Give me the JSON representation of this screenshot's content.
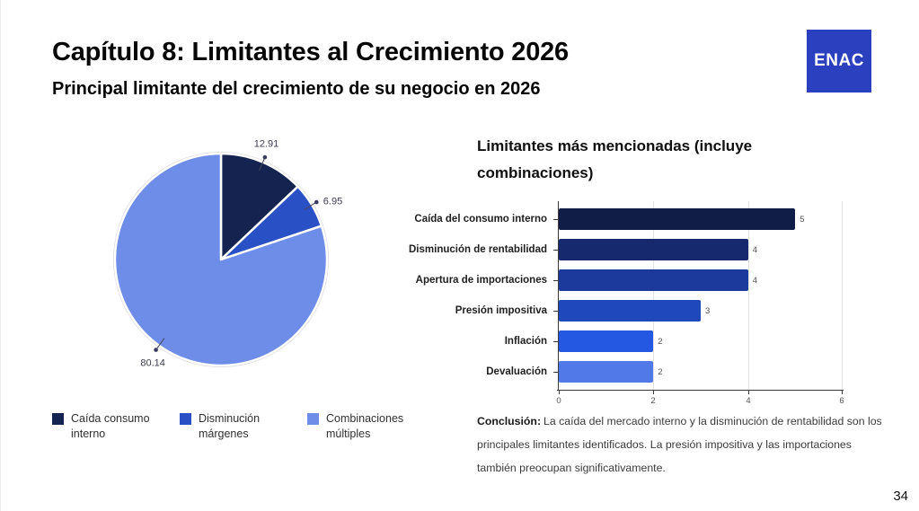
{
  "header": {
    "title": "Capítulo 8: Limitantes al Crecimiento 2026",
    "subtitle": "Principal limitante del crecimiento de su negocio en 2026",
    "logo_text": "ENAC",
    "logo_color": "#2a40bf"
  },
  "page_number": "34",
  "chart_data": [
    {
      "type": "pie",
      "labels": [
        "Caída consumo interno",
        "Disminución márgenes",
        "Combinaciones múltiples"
      ],
      "values": [
        12.91,
        6.95,
        80.14
      ],
      "value_labels": [
        "12.91",
        "6.95",
        "80.14"
      ],
      "colors": [
        "#14234f",
        "#2a50c6",
        "#6d8de8"
      ],
      "start_angle_deg": -90,
      "direction": "clockwise",
      "legend_position": "bottom"
    },
    {
      "type": "bar",
      "orientation": "horizontal",
      "title": "Limitantes más mencionadas (incluye combinaciones)",
      "categories": [
        "Caída del consumo interno",
        "Disminución de rentabilidad",
        "Apertura de importaciones",
        "Presión impositiva",
        "Inflación",
        "Devaluación"
      ],
      "values": [
        5,
        4,
        4,
        3,
        2,
        2
      ],
      "colors": [
        "#101d46",
        "#16296e",
        "#1c3a9c",
        "#1f48bd",
        "#2458e2",
        "#5279e8"
      ],
      "xlim": [
        0,
        6
      ],
      "xticks": [
        0,
        2,
        4,
        6
      ],
      "grid": true
    }
  ],
  "legend": {
    "items": [
      {
        "label": "Caída consumo interno",
        "color": "#14234f"
      },
      {
        "label": "Disminución márgenes",
        "color": "#2a50c6"
      },
      {
        "label": "Combinaciones múltiples",
        "color": "#6d8de8"
      }
    ]
  },
  "conclusion": {
    "label": "Conclusión:",
    "text": "La caída del mercado interno y la disminución de rentabilidad son los principales limitantes identificados. La presión impositiva y las importaciones también preocupan significativamente."
  }
}
